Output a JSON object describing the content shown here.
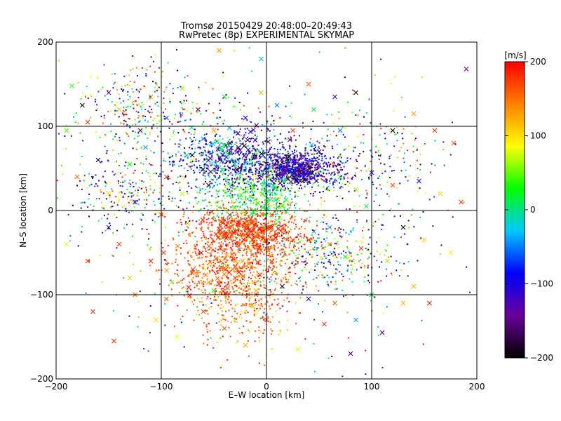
{
  "chart_data": {
    "type": "scatter",
    "title": "Tromsø 20150429 20:48:00–20:49:43",
    "subtitle": "RwPretec (8p) EXPERIMENTAL SKYMAP",
    "xlabel": "E–W location [km]",
    "ylabel": "N–S location [km]",
    "xlim": [
      -200,
      200
    ],
    "ylim": [
      -200,
      200
    ],
    "x_ticks": [
      -200,
      -100,
      0,
      100,
      200
    ],
    "y_ticks": [
      -200,
      -100,
      0,
      100,
      200
    ],
    "x_tick_labels": [
      "−200",
      "−100",
      "0",
      "100",
      "200"
    ],
    "y_tick_labels": [
      "−200",
      "−100",
      "0",
      "100",
      "200"
    ],
    "grid": true,
    "colorbar": {
      "unit": "[m/s]",
      "range": [
        -200,
        200
      ],
      "ticks": [
        200,
        100,
        0,
        -100,
        -200
      ],
      "tick_labels": [
        "200",
        "100",
        "0",
        "−100",
        "−200"
      ],
      "colors": [
        "#000000",
        "#6a0098",
        "#0000ff",
        "#00c8ff",
        "#00ff00",
        "#ffff00",
        "#ff8000",
        "#ff0000"
      ]
    },
    "markers": {
      "cross": "x",
      "dot": "small point"
    },
    "series": [
      {
        "marker": "x",
        "points": [
          [
            -185,
            148,
            40
          ],
          [
            -175,
            125,
            -200
          ],
          [
            -170,
            105,
            180
          ],
          [
            -150,
            140,
            -120
          ],
          [
            -140,
            120,
            110
          ],
          [
            -120,
            95,
            -160
          ],
          [
            -110,
            135,
            150
          ],
          [
            -95,
            110,
            -60
          ],
          [
            -80,
            145,
            60
          ],
          [
            -65,
            120,
            -140
          ],
          [
            -50,
            95,
            130
          ],
          [
            -40,
            135,
            20
          ],
          [
            -20,
            110,
            -90
          ],
          [
            -5,
            140,
            120
          ],
          [
            10,
            125,
            -50
          ],
          [
            25,
            95,
            170
          ],
          [
            45,
            120,
            10
          ],
          [
            65,
            135,
            -130
          ],
          [
            85,
            140,
            -180
          ],
          [
            120,
            95,
            -200
          ],
          [
            140,
            115,
            130
          ],
          [
            160,
            95,
            180
          ],
          [
            178,
            80,
            160
          ],
          [
            190,
            168,
            -150
          ],
          [
            -190,
            95,
            40
          ],
          [
            -160,
            60,
            -190
          ],
          [
            -130,
            55,
            30
          ],
          [
            -115,
            75,
            -40
          ],
          [
            -95,
            40,
            170
          ],
          [
            -70,
            60,
            80
          ],
          [
            -55,
            30,
            -200
          ],
          [
            -30,
            55,
            -20
          ],
          [
            -10,
            70,
            40
          ],
          [
            20,
            60,
            -120
          ],
          [
            35,
            50,
            190
          ],
          [
            50,
            70,
            -180
          ],
          [
            70,
            40,
            20
          ],
          [
            85,
            25,
            60
          ],
          [
            100,
            45,
            -90
          ],
          [
            120,
            30,
            170
          ],
          [
            145,
            35,
            -80
          ],
          [
            165,
            20,
            100
          ],
          [
            185,
            10,
            180
          ],
          [
            -180,
            40,
            150
          ],
          [
            -150,
            20,
            100
          ],
          [
            -125,
            10,
            -110
          ],
          [
            -100,
            -5,
            170
          ],
          [
            -75,
            -15,
            120
          ],
          [
            -45,
            -25,
            190
          ],
          [
            -20,
            -15,
            175
          ],
          [
            5,
            -20,
            185
          ],
          [
            25,
            -35,
            160
          ],
          [
            45,
            -25,
            -30
          ],
          [
            60,
            -40,
            140
          ],
          [
            75,
            -55,
            20
          ],
          [
            90,
            -45,
            180
          ],
          [
            115,
            -60,
            60
          ],
          [
            130,
            -20,
            -200
          ],
          [
            150,
            -35,
            110
          ],
          [
            175,
            -50,
            90
          ],
          [
            -190,
            -40,
            80
          ],
          [
            -170,
            -60,
            170
          ],
          [
            -150,
            -20,
            -100
          ],
          [
            -130,
            -80,
            110
          ],
          [
            -110,
            -60,
            190
          ],
          [
            -90,
            -85,
            60
          ],
          [
            -70,
            -70,
            180
          ],
          [
            -50,
            -95,
            30
          ],
          [
            -30,
            -80,
            170
          ],
          [
            -10,
            -100,
            140
          ],
          [
            15,
            -90,
            -190
          ],
          [
            40,
            -105,
            -120
          ],
          [
            65,
            -110,
            160
          ],
          [
            85,
            -130,
            -40
          ],
          [
            110,
            -145,
            -150
          ],
          [
            130,
            -110,
            120
          ],
          [
            155,
            -110,
            190
          ],
          [
            -165,
            -120,
            175
          ],
          [
            -145,
            -155,
            180
          ],
          [
            -125,
            -100,
            150
          ],
          [
            -105,
            -130,
            100
          ],
          [
            -85,
            -150,
            90
          ],
          [
            -60,
            -120,
            170
          ],
          [
            -40,
            -140,
            160
          ],
          [
            -20,
            -160,
            120
          ],
          [
            0,
            -130,
            185
          ],
          [
            30,
            -165,
            80
          ],
          [
            55,
            -135,
            180
          ],
          [
            80,
            -170,
            -160
          ],
          [
            100,
            -100,
            10
          ],
          [
            0,
            45,
            -150
          ],
          [
            10,
            40,
            -170
          ],
          [
            20,
            55,
            -130
          ],
          [
            30,
            45,
            195
          ],
          [
            -15,
            60,
            30
          ],
          [
            -25,
            45,
            -10
          ],
          [
            -35,
            -5,
            190
          ],
          [
            -15,
            -10,
            185
          ],
          [
            5,
            -5,
            175
          ],
          [
            15,
            5,
            30
          ],
          [
            -60,
            85,
            -40
          ],
          [
            -80,
            20,
            70
          ],
          [
            60,
            -20,
            -30
          ],
          [
            95,
            5,
            10
          ],
          [
            -140,
            -40,
            180
          ],
          [
            70,
            95,
            -50
          ],
          [
            -45,
            190,
            130
          ],
          [
            40,
            150,
            160
          ],
          [
            -5,
            180,
            -30
          ],
          [
            140,
            -90,
            120
          ]
        ]
      },
      {
        "marker": ".",
        "clusters": [
          {
            "cx": -30,
            "cy": 60,
            "sx": 55,
            "sy": 35,
            "n": 700,
            "vmin": -200,
            "vmax": 0
          },
          {
            "cx": 30,
            "cy": 50,
            "sx": 40,
            "sy": 20,
            "n": 650,
            "vmin": -200,
            "vmax": -60
          },
          {
            "cx": -10,
            "cy": 15,
            "sx": 40,
            "sy": 30,
            "n": 400,
            "vmin": -40,
            "vmax": 80
          },
          {
            "cx": -15,
            "cy": -25,
            "sx": 45,
            "sy": 25,
            "n": 700,
            "vmin": 140,
            "vmax": 200
          },
          {
            "cx": -30,
            "cy": -70,
            "sx": 55,
            "sy": 35,
            "n": 600,
            "vmin": 120,
            "vmax": 200
          },
          {
            "cx": -20,
            "cy": -120,
            "sx": 40,
            "sy": 35,
            "n": 200,
            "vmin": 90,
            "vmax": 200
          },
          {
            "cx": 60,
            "cy": -50,
            "sx": 60,
            "sy": 35,
            "n": 300,
            "vmin": -200,
            "vmax": 200
          },
          {
            "cx": -120,
            "cy": 120,
            "sx": 60,
            "sy": 45,
            "n": 300,
            "vmin": -200,
            "vmax": 200
          },
          {
            "cx": -130,
            "cy": 20,
            "sx": 50,
            "sy": 40,
            "n": 250,
            "vmin": -200,
            "vmax": 200
          },
          {
            "cx": 100,
            "cy": 60,
            "sx": 60,
            "sy": 50,
            "n": 180,
            "vmin": -200,
            "vmax": 200
          },
          {
            "cx": 0,
            "cy": 0,
            "sx": 160,
            "sy": 160,
            "n": 500,
            "vmin": -200,
            "vmax": 200
          }
        ]
      },
      {
        "marker": "x",
        "clusters": [
          {
            "cx": 25,
            "cy": 45,
            "sx": 20,
            "sy": 12,
            "n": 55,
            "vmin": -200,
            "vmax": -70
          },
          {
            "cx": -35,
            "cy": 70,
            "sx": 35,
            "sy": 20,
            "n": 50,
            "vmin": -200,
            "vmax": 20
          },
          {
            "cx": -20,
            "cy": -25,
            "sx": 30,
            "sy": 15,
            "n": 60,
            "vmin": 150,
            "vmax": 200
          },
          {
            "cx": -40,
            "cy": -75,
            "sx": 45,
            "sy": 30,
            "n": 40,
            "vmin": 120,
            "vmax": 200
          },
          {
            "cx": 0,
            "cy": 15,
            "sx": 25,
            "sy": 25,
            "n": 25,
            "vmin": -40,
            "vmax": 60
          }
        ]
      }
    ]
  }
}
